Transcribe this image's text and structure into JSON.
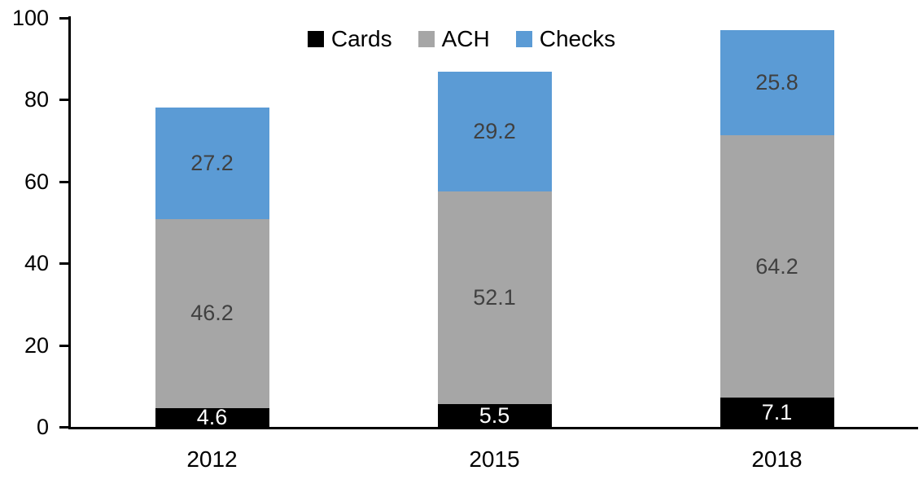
{
  "chart_data": {
    "type": "bar",
    "stacked": true,
    "title": "",
    "xlabel": "",
    "ylabel": "",
    "categories": [
      "2012",
      "2015",
      "2018"
    ],
    "series": [
      {
        "name": "Cards",
        "color": "#000000",
        "label_color": "#ffffff",
        "values": [
          4.6,
          5.5,
          7.1
        ]
      },
      {
        "name": "ACH",
        "color": "#a6a6a6",
        "label_color": "#404040",
        "values": [
          46.2,
          52.1,
          64.2
        ]
      },
      {
        "name": "Checks",
        "color": "#5b9bd5",
        "label_color": "#404040",
        "values": [
          27.2,
          29.2,
          25.8
        ]
      }
    ],
    "totals": [
      78.0,
      86.8,
      97.1
    ],
    "ylim": [
      0,
      100
    ],
    "yticks": [
      0,
      20,
      40,
      60,
      80,
      100
    ],
    "grid": false,
    "legend_position": "top-center",
    "legend": [
      "Cards",
      "ACH",
      "Checks"
    ],
    "axis_color": "#000000",
    "background": "#ffffff"
  }
}
